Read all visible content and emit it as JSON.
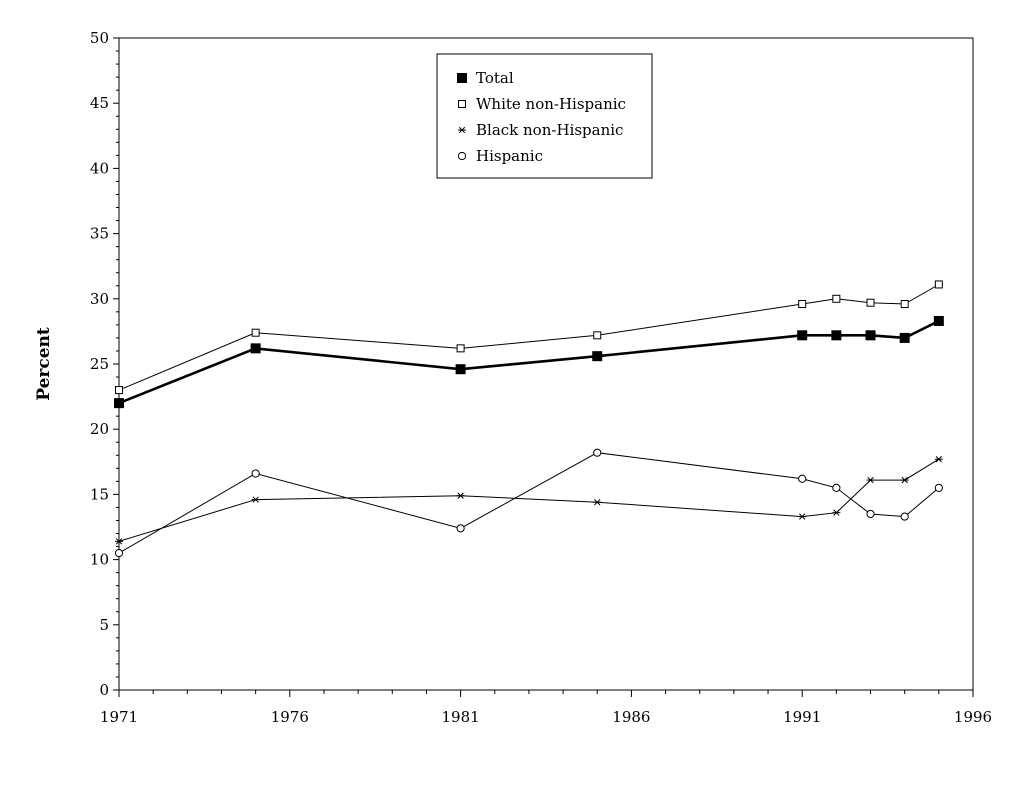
{
  "chart_data": {
    "type": "line",
    "title": "",
    "xlabel": "",
    "ylabel": "Percent",
    "xlim": [
      1971,
      1996
    ],
    "ylim": [
      0,
      50
    ],
    "x_ticks": [
      "1971",
      "1976",
      "1981",
      "1986",
      "1991",
      "1996"
    ],
    "y_ticks": [
      "0",
      "5",
      "10",
      "15",
      "20",
      "25",
      "30",
      "35",
      "40",
      "45",
      "50"
    ],
    "grid": false,
    "legend_position": "top-center",
    "series": [
      {
        "name": "Total",
        "marker": "filled-square",
        "x": [
          1971,
          1975,
          1981,
          1985,
          1991,
          1992,
          1993,
          1994,
          1995
        ],
        "values": [
          22.0,
          26.2,
          24.6,
          25.6,
          27.2,
          27.2,
          27.2,
          27.0,
          28.3
        ]
      },
      {
        "name": "White non-Hispanic",
        "marker": "open-square",
        "x": [
          1971,
          1975,
          1981,
          1985,
          1991,
          1992,
          1993,
          1994,
          1995
        ],
        "values": [
          23.0,
          27.4,
          26.2,
          27.2,
          29.6,
          30.0,
          29.7,
          29.6,
          31.1
        ]
      },
      {
        "name": "Black non-Hispanic",
        "marker": "star",
        "x": [
          1971,
          1975,
          1981,
          1985,
          1991,
          1992,
          1993,
          1994,
          1995
        ],
        "values": [
          11.4,
          14.6,
          14.9,
          14.4,
          13.3,
          13.6,
          16.1,
          16.1,
          17.7
        ]
      },
      {
        "name": "Hispanic",
        "marker": "open-circle",
        "x": [
          1971,
          1975,
          1981,
          1985,
          1991,
          1992,
          1993,
          1994,
          1995
        ],
        "values": [
          10.5,
          16.6,
          12.4,
          18.2,
          16.2,
          15.5,
          13.5,
          13.3,
          15.5
        ]
      }
    ]
  }
}
